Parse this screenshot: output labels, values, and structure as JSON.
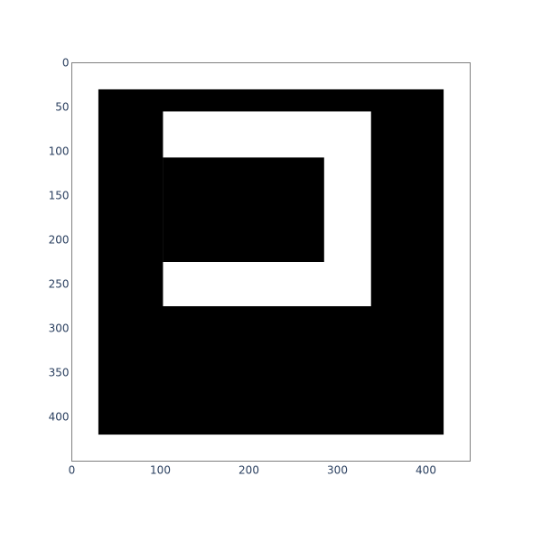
{
  "chart_data": {
    "type": "heatmap",
    "title": "",
    "xlabel": "",
    "ylabel": "",
    "xlim": [
      0,
      450
    ],
    "ylim": [
      0,
      450
    ],
    "y_reversed": true,
    "grid": false,
    "x_ticks": [
      0,
      100,
      200,
      300,
      400
    ],
    "y_ticks": [
      0,
      50,
      100,
      150,
      200,
      250,
      300,
      350,
      400
    ],
    "x_tick_labels": [
      "0",
      "100",
      "200",
      "300",
      "400"
    ],
    "y_tick_labels": [
      "0",
      "50",
      "100",
      "150",
      "200",
      "250",
      "300",
      "350",
      "400"
    ],
    "regions": [
      {
        "x0": 30,
        "x1": 420,
        "y0": 30,
        "y1": 420,
        "color": "#000000"
      },
      {
        "x0": 103,
        "x1": 338,
        "y0": 55,
        "y1": 275,
        "color": "#ffffff"
      },
      {
        "x0": 103,
        "x1": 285,
        "y0": 107,
        "y1": 225,
        "color": "#000000"
      }
    ]
  },
  "colors": {
    "background": "#ffffff",
    "axis_line": "#7f7f7f",
    "tick_text": "#2a3f5f"
  }
}
